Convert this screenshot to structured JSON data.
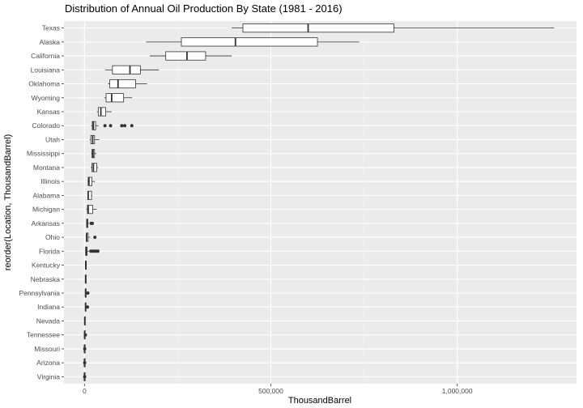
{
  "chart_data": {
    "type": "boxplot",
    "orientation": "horizontal",
    "title": "Distribution of Annual Oil Production By State (1981 - 2016)",
    "xlabel": "ThousandBarrel",
    "ylabel": "reorder(Location, ThousandBarrel)",
    "xlim": [
      -55000,
      1320000
    ],
    "x_ticks": [
      0,
      500000,
      1000000
    ],
    "x_tick_labels": [
      "0",
      "500,000",
      "1,000,000"
    ],
    "grid": true,
    "legend": "none",
    "categories": [
      "Texas",
      "Alaska",
      "California",
      "Louisiana",
      "Oklahoma",
      "Wyoming",
      "Kansas",
      "Colorado",
      "Utah",
      "Mississippi",
      "Montana",
      "Illinois",
      "Alabama",
      "Michigan",
      "Arkansas",
      "Ohio",
      "Florida",
      "Kentucky",
      "Nebraska",
      "Pennsylvania",
      "Indiana",
      "Nevada",
      "Tennessee",
      "Missouri",
      "Arizona",
      "Virginia"
    ],
    "boxes": [
      {
        "min": 395000,
        "q1": 425000,
        "median": 600000,
        "q3": 830000,
        "max": 1260000,
        "outliers": []
      },
      {
        "min": 165000,
        "q1": 260000,
        "median": 405000,
        "q3": 625000,
        "max": 737000,
        "outliers": []
      },
      {
        "min": 175000,
        "q1": 218000,
        "median": 275000,
        "q3": 325000,
        "max": 395000,
        "outliers": []
      },
      {
        "min": 55000,
        "q1": 75000,
        "median": 122000,
        "q3": 150000,
        "max": 200000,
        "outliers": []
      },
      {
        "min": 63000,
        "q1": 68000,
        "median": 90000,
        "q3": 137000,
        "max": 168000,
        "outliers": []
      },
      {
        "min": 53000,
        "q1": 58000,
        "median": 73000,
        "q3": 105000,
        "max": 128000,
        "outliers": []
      },
      {
        "min": 33000,
        "q1": 37000,
        "median": 44000,
        "q3": 57000,
        "max": 73000,
        "outliers": []
      },
      {
        "min": 18000,
        "q1": 21000,
        "median": 24000,
        "q3": 30000,
        "max": 38000,
        "outliers": [
          55000,
          70000,
          100000,
          108000,
          127000
        ]
      },
      {
        "min": 14000,
        "q1": 17000,
        "median": 22000,
        "q3": 27000,
        "max": 40000,
        "outliers": []
      },
      {
        "min": 18000,
        "q1": 20000,
        "median": 23000,
        "q3": 27000,
        "max": 32000,
        "outliers": []
      },
      {
        "min": 17000,
        "q1": 20000,
        "median": 24000,
        "q3": 33000,
        "max": 37000,
        "outliers": []
      },
      {
        "min": 8000,
        "q1": 10000,
        "median": 12000,
        "q3": 20000,
        "max": 28000,
        "outliers": []
      },
      {
        "min": 8000,
        "q1": 9000,
        "median": 10000,
        "q3": 19000,
        "max": 21000,
        "outliers": []
      },
      {
        "min": 5000,
        "q1": 8000,
        "median": 10000,
        "q3": 22000,
        "max": 33000,
        "outliers": []
      },
      {
        "min": 5000,
        "q1": 6000,
        "median": 7000,
        "q3": 9000,
        "max": 12000,
        "outliers": [
          18000,
          21000
        ]
      },
      {
        "min": 4000,
        "q1": 5000,
        "median": 6000,
        "q3": 10000,
        "max": 15000,
        "outliers": [
          28000
        ]
      },
      {
        "min": 2000,
        "q1": 3000,
        "median": 5000,
        "q3": 7000,
        "max": 12000,
        "outliers": [
          17000,
          22000,
          26000,
          32000,
          36000
        ]
      },
      {
        "min": 2500,
        "q1": 3000,
        "median": 3500,
        "q3": 5000,
        "max": 6000,
        "outliers": []
      },
      {
        "min": 2000,
        "q1": 2500,
        "median": 3000,
        "q3": 4500,
        "max": 6000,
        "outliers": []
      },
      {
        "min": 1500,
        "q1": 2000,
        "median": 3000,
        "q3": 4500,
        "max": 7000,
        "outliers": [
          9000
        ]
      },
      {
        "min": 1500,
        "q1": 2000,
        "median": 3000,
        "q3": 4000,
        "max": 5500,
        "outliers": [
          8000
        ]
      },
      {
        "min": 300,
        "q1": 500,
        "median": 800,
        "q3": 1200,
        "max": 1800,
        "outliers": []
      },
      {
        "min": 100,
        "q1": 300,
        "median": 500,
        "q3": 900,
        "max": 1200,
        "outliers": [
          2500
        ]
      },
      {
        "min": 50,
        "q1": 100,
        "median": 150,
        "q3": 250,
        "max": 350,
        "outliers": [
          700
        ]
      },
      {
        "min": 20,
        "q1": 50,
        "median": 100,
        "q3": 150,
        "max": 250,
        "outliers": [
          600
        ]
      },
      {
        "min": 10,
        "q1": 20,
        "median": 30,
        "q3": 50,
        "max": 80,
        "outliers": [
          500
        ]
      }
    ]
  },
  "colors": {
    "panel_background": "#ebebeb",
    "grid_major": "#ffffff",
    "grid_minor": "#f2f2f2",
    "box_fill": "#ffffff",
    "box_stroke": "#333333",
    "tick_text": "#4d4d4d",
    "tick_mark": "#333333"
  }
}
